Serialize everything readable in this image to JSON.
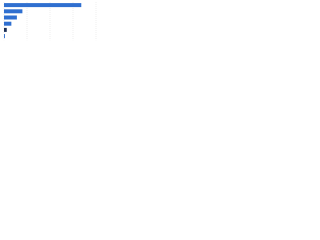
{
  "chart_data": {
    "type": "bar",
    "orientation": "horizontal",
    "categories": [
      null,
      null,
      null,
      null,
      null,
      null
    ],
    "values": [
      84,
      20,
      14,
      8,
      3,
      1
    ],
    "colors": [
      "#2f6fd0",
      "#2f6fd0",
      "#2f6fd0",
      "#2f6fd0",
      "#1c2f55",
      "#2f6fd0"
    ],
    "xlim": [
      0,
      100
    ],
    "xticks": [
      0,
      25,
      50,
      75,
      100
    ],
    "grid": true
  }
}
